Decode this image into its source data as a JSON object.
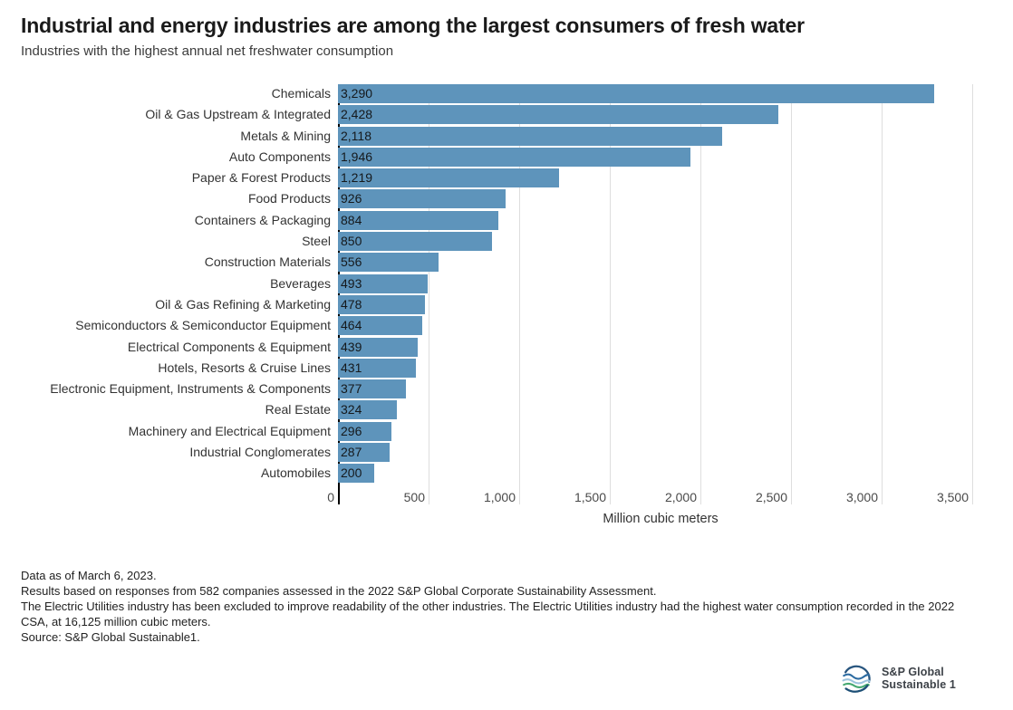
{
  "header": {
    "title": "Industrial and energy industries are among the largest consumers of fresh water",
    "subtitle": "Industries with the highest annual net freshwater consumption"
  },
  "chart_data": {
    "type": "bar",
    "orientation": "horizontal",
    "title": "Industrial and energy industries are among the largest consumers of fresh water",
    "subtitle": "Industries with the highest annual net freshwater consumption",
    "categories": [
      "Chemicals",
      "Oil & Gas Upstream & Integrated",
      "Metals & Mining",
      "Auto Components",
      "Paper & Forest Products",
      "Food Products",
      "Containers & Packaging",
      "Steel",
      "Construction Materials",
      "Beverages",
      "Oil & Gas Refining & Marketing",
      "Semiconductors & Semiconductor Equipment",
      "Electrical Components & Equipment",
      "Hotels, Resorts & Cruise Lines",
      "Electronic Equipment, Instruments & Components",
      "Real Estate",
      "Machinery and Electrical Equipment",
      "Industrial Conglomerates",
      "Automobiles"
    ],
    "values": [
      3290,
      2428,
      2118,
      1946,
      1219,
      926,
      884,
      850,
      556,
      493,
      478,
      464,
      439,
      431,
      377,
      324,
      296,
      287,
      200
    ],
    "value_labels": [
      "3,290",
      "2,428",
      "2,118",
      "1,946",
      "1,219",
      "926",
      "884",
      "850",
      "556",
      "493",
      "478",
      "464",
      "439",
      "431",
      "377",
      "324",
      "296",
      "287",
      "200"
    ],
    "xlabel": "Million cubic meters",
    "ylabel": "",
    "xlim": [
      0,
      3500
    ],
    "xticks": [
      0,
      500,
      1000,
      1500,
      2000,
      2500,
      3000,
      3500
    ],
    "xtick_labels": [
      "0",
      "500",
      "1,000",
      "1,500",
      "2,000",
      "2,500",
      "3,000",
      "3,500"
    ],
    "grid": true,
    "legend": "none",
    "bar_color": "#5E94BB",
    "axis_color": "#000000",
    "gridline_color": "#dedede"
  },
  "footnotes": {
    "lines": [
      "Data as of March 6, 2023.",
      "Results based on responses from 582 companies assessed in the 2022 S&P Global Corporate Sustainability Assessment.",
      "The Electric Utilities industry has been excluded to improve readability of the other industries. The Electric Utilities industry had the highest water consumption recorded in the 2022 CSA, at 16,125 million cubic meters.",
      "Source: S&P Global Sustainable1."
    ]
  },
  "logo": {
    "line1": "S&P Global",
    "line2": "Sustainable 1"
  }
}
